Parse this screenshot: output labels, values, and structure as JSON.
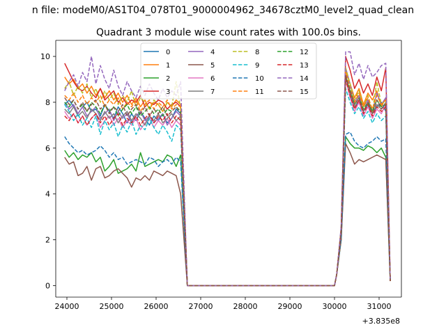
{
  "suptitle": "n file: modeM0/AS1T04_078T01_9000004962_34678cztM0_level2_quad_clean",
  "chart_data": {
    "type": "line",
    "title": "Quadrant 3 module wise count rates with 100.0s bins.",
    "xlabel": "",
    "ylabel": "",
    "x_offset_label": "+3.835e8",
    "xlim": [
      23750,
      31500
    ],
    "ylim": [
      -0.5,
      10.7
    ],
    "xticks": [
      24000,
      25000,
      26000,
      27000,
      28000,
      29000,
      30000,
      31000
    ],
    "yticks": [
      0,
      2,
      4,
      6,
      8,
      10
    ],
    "grid": false,
    "legend": {
      "placement": "top-center",
      "columns": 4
    },
    "segment1": {
      "start": 23950,
      "step": 100,
      "count": 27
    },
    "segment2": {
      "start": 30050,
      "step": 100,
      "count": 12
    },
    "series": [
      {
        "name": "0",
        "color": "#1f77b4",
        "dash": "solid",
        "seg1": [
          7.9,
          8.1,
          7.8,
          7.5,
          7.8,
          8.0,
          7.6,
          7.7,
          7.4,
          7.9,
          7.6,
          7.3,
          7.8,
          7.5,
          7.1,
          7.5,
          7.2,
          7.6,
          7.3,
          7.0,
          7.4,
          7.2,
          7.5,
          7.1,
          7.3,
          7.7,
          7.5
        ],
        "seg2": [
          0.5,
          2.5,
          9.0,
          8.3,
          7.8,
          8.0,
          7.6,
          7.9,
          7.5,
          7.8,
          8.0,
          7.6
        ]
      },
      {
        "name": "1",
        "color": "#ff7f0e",
        "dash": "solid",
        "seg1": [
          9.1,
          8.8,
          9.0,
          8.6,
          8.8,
          8.4,
          8.7,
          8.3,
          8.6,
          8.2,
          8.5,
          8.1,
          8.4,
          8.0,
          8.3,
          7.9,
          8.2,
          7.8,
          8.1,
          7.7,
          8.0,
          7.9,
          7.6,
          8.0,
          7.8,
          8.1,
          7.9
        ],
        "seg2": [
          0.5,
          2.5,
          9.4,
          8.8,
          8.2,
          8.6,
          7.9,
          8.4,
          8.1,
          8.5,
          7.8,
          8.2
        ]
      },
      {
        "name": "2",
        "color": "#2ca02c",
        "dash": "solid",
        "seg1": [
          5.9,
          5.6,
          5.8,
          5.5,
          5.7,
          5.6,
          5.8,
          5.4,
          5.6,
          5.0,
          5.2,
          5.5,
          4.9,
          5.0,
          5.1,
          5.3,
          5.0,
          5.8,
          5.2,
          5.3,
          5.4,
          5.5,
          5.4,
          5.7,
          5.6,
          5.2,
          5.7
        ],
        "seg2": [
          0.5,
          2.0,
          6.5,
          6.2,
          6.0,
          6.0,
          5.9,
          6.1,
          6.0,
          5.8,
          6.0,
          5.6
        ]
      },
      {
        "name": "3",
        "color": "#d62728",
        "dash": "solid",
        "seg1": [
          9.7,
          9.3,
          8.9,
          8.6,
          8.5,
          8.7,
          8.4,
          8.2,
          8.6,
          8.1,
          8.3,
          8.5,
          8.0,
          8.2,
          7.9,
          8.1,
          8.0,
          8.3,
          7.8,
          8.0,
          7.9,
          8.1,
          8.0,
          7.7,
          7.9,
          8.0,
          7.8
        ],
        "seg2": [
          0.5,
          2.5,
          10.0,
          9.4,
          8.6,
          9.0,
          8.4,
          8.8,
          8.3,
          9.1,
          8.5,
          9.5
        ]
      },
      {
        "name": "4",
        "color": "#9467bd",
        "dash": "solid",
        "seg1": [
          8.0,
          7.7,
          7.9,
          7.5,
          7.8,
          7.4,
          7.6,
          7.8,
          7.3,
          7.5,
          7.7,
          7.2,
          7.6,
          7.3,
          7.5,
          7.1,
          7.4,
          7.6,
          7.2,
          7.4,
          7.1,
          7.3,
          7.5,
          7.0,
          7.3,
          7.6,
          7.4
        ],
        "seg2": [
          0.5,
          2.5,
          9.5,
          8.8,
          8.0,
          8.3,
          7.8,
          8.1,
          7.6,
          8.4,
          7.9,
          8.2
        ]
      },
      {
        "name": "5",
        "color": "#8c564b",
        "dash": "solid",
        "seg1": [
          5.6,
          5.3,
          5.4,
          4.8,
          4.9,
          5.2,
          4.6,
          5.1,
          5.2,
          4.7,
          4.8,
          5.0,
          5.1,
          4.9,
          4.7,
          4.3,
          4.7,
          4.6,
          4.8,
          4.6,
          5.0,
          4.9,
          4.8,
          5.0,
          4.9,
          4.8,
          4.0
        ],
        "seg2": [
          0.5,
          2.0,
          6.2,
          5.8,
          5.3,
          5.5,
          5.4,
          5.5,
          5.6,
          5.7,
          5.6,
          5.5
        ]
      },
      {
        "name": "6",
        "color": "#e377c2",
        "dash": "solid",
        "seg1": [
          7.6,
          7.3,
          7.5,
          7.1,
          7.4,
          7.0,
          7.3,
          7.5,
          6.9,
          7.2,
          7.4,
          7.0,
          7.3,
          6.9,
          7.2,
          7.0,
          7.3,
          6.8,
          7.1,
          7.3,
          6.9,
          7.2,
          7.0,
          7.3,
          6.9,
          7.2,
          7.0
        ],
        "seg2": [
          0.5,
          2.4,
          9.0,
          8.2,
          7.6,
          8.0,
          7.4,
          7.8,
          7.3,
          7.7,
          7.5,
          7.9
        ]
      },
      {
        "name": "7",
        "color": "#7f7f7f",
        "dash": "solid",
        "seg1": [
          7.7,
          7.5,
          7.8,
          7.4,
          7.6,
          7.3,
          7.7,
          7.5,
          7.2,
          7.6,
          7.3,
          7.5,
          7.1,
          7.4,
          7.6,
          7.2,
          7.5,
          7.3,
          7.0,
          7.4,
          7.2,
          7.5,
          7.1,
          7.3,
          7.5,
          7.2,
          7.4
        ],
        "seg2": [
          0.5,
          2.4,
          9.2,
          8.4,
          7.8,
          8.1,
          7.6,
          8.0,
          7.5,
          7.9,
          7.7,
          8.0
        ]
      },
      {
        "name": "8",
        "color": "#bcbd22",
        "dash": "dashed",
        "seg1": [
          8.6,
          8.9,
          8.3,
          8.7,
          8.4,
          8.8,
          8.2,
          8.6,
          8.0,
          8.5,
          8.1,
          8.4,
          7.9,
          8.3,
          8.0,
          8.5,
          7.8,
          8.2,
          8.0,
          7.7,
          8.1,
          7.9,
          7.6,
          8.0,
          7.8,
          8.9,
          7.7
        ],
        "seg2": [
          0.5,
          2.5,
          9.5,
          8.8,
          8.1,
          8.5,
          7.8,
          8.3,
          7.6,
          8.9,
          7.9,
          8.1
        ]
      },
      {
        "name": "9",
        "color": "#17becf",
        "dash": "dashed",
        "seg1": [
          7.9,
          7.6,
          7.2,
          7.5,
          7.0,
          7.3,
          6.9,
          7.4,
          6.6,
          7.2,
          6.8,
          7.1,
          6.5,
          7.0,
          6.7,
          7.2,
          6.6,
          7.0,
          6.8,
          7.3,
          6.9,
          6.6,
          7.0,
          6.7,
          6.3,
          7.0,
          6.8
        ],
        "seg2": [
          0.5,
          2.3,
          8.6,
          8.0,
          7.5,
          7.8,
          7.3,
          7.6,
          7.1,
          7.5,
          7.2,
          7.4
        ]
      },
      {
        "name": "10",
        "color": "#1f77b4",
        "dash": "dashed",
        "seg1": [
          6.5,
          6.2,
          6.0,
          5.8,
          5.9,
          5.7,
          5.8,
          5.9,
          6.1,
          5.9,
          5.6,
          5.8,
          5.5,
          5.6,
          5.3,
          5.4,
          5.5,
          5.4,
          5.3,
          5.6,
          5.5,
          5.2,
          5.4,
          5.5,
          5.3,
          5.6,
          5.4
        ],
        "seg2": [
          0.5,
          2.1,
          6.6,
          6.7,
          6.3,
          6.1,
          6.0,
          6.2,
          6.3,
          6.5,
          6.3,
          6.4
        ]
      },
      {
        "name": "11",
        "color": "#ff7f0e",
        "dash": "dashed",
        "seg1": [
          8.3,
          8.1,
          8.4,
          8.0,
          8.3,
          7.9,
          8.2,
          8.0,
          8.3,
          7.8,
          8.1,
          7.9,
          8.2,
          7.7,
          8.0,
          7.8,
          8.1,
          7.6,
          7.9,
          8.1,
          7.7,
          8.0,
          7.8,
          8.1,
          7.7,
          7.9,
          7.8
        ],
        "seg2": [
          0.5,
          2.5,
          9.3,
          8.6,
          8.0,
          8.4,
          7.8,
          8.2,
          7.7,
          8.3,
          7.9,
          8.1
        ]
      },
      {
        "name": "12",
        "color": "#2ca02c",
        "dash": "dashed",
        "seg1": [
          8.0,
          7.8,
          8.1,
          7.7,
          7.9,
          7.6,
          8.0,
          7.8,
          7.5,
          7.9,
          7.6,
          7.8,
          7.4,
          7.7,
          7.9,
          7.5,
          7.8,
          7.4,
          7.6,
          7.8,
          7.5,
          7.7,
          7.4,
          7.7,
          7.6,
          7.8,
          7.6
        ],
        "seg2": [
          0.5,
          2.4,
          9.1,
          8.5,
          7.9,
          8.2,
          7.7,
          8.0,
          7.6,
          8.1,
          7.8,
          7.9
        ]
      },
      {
        "name": "13",
        "color": "#d62728",
        "dash": "dashed",
        "seg1": [
          7.4,
          7.2,
          7.5,
          7.1,
          7.4,
          7.0,
          7.3,
          7.5,
          7.1,
          7.4,
          7.0,
          7.3,
          7.5,
          7.0,
          7.3,
          7.1,
          7.4,
          7.0,
          7.3,
          7.5,
          7.1,
          7.4,
          7.2,
          7.5,
          7.1,
          7.4,
          7.2
        ],
        "seg2": [
          0.5,
          2.4,
          9.0,
          8.3,
          7.7,
          8.1,
          7.5,
          7.9,
          7.4,
          7.8,
          7.6,
          7.8
        ]
      },
      {
        "name": "14",
        "color": "#9467bd",
        "dash": "dashed",
        "seg1": [
          8.5,
          8.9,
          9.2,
          8.7,
          9.3,
          8.9,
          10.0,
          8.8,
          9.6,
          9.0,
          8.6,
          9.4,
          8.7,
          8.3,
          8.9,
          8.5,
          8.2,
          8.7,
          8.3,
          8.8,
          8.4,
          8.1,
          8.6,
          8.2,
          8.5,
          8.3,
          8.9
        ],
        "seg2": [
          0.5,
          2.6,
          10.2,
          10.2,
          9.2,
          9.7,
          9.0,
          9.6,
          9.1,
          9.3,
          9.6,
          9.7
        ]
      },
      {
        "name": "15",
        "color": "#8c564b",
        "dash": "dashed",
        "seg1": [
          8.2,
          7.9,
          8.1,
          7.7,
          8.0,
          7.6,
          7.9,
          8.1,
          7.7,
          7.9,
          7.5,
          7.8,
          7.6,
          7.9,
          7.4,
          7.7,
          7.9,
          7.5,
          7.8,
          7.4,
          7.7,
          7.5,
          7.8,
          7.4,
          7.6,
          7.8,
          7.5
        ],
        "seg2": [
          0.5,
          2.4,
          9.2,
          8.5,
          7.9,
          8.2,
          7.6,
          8.0,
          7.5,
          8.1,
          7.7,
          7.9
        ]
      }
    ]
  }
}
